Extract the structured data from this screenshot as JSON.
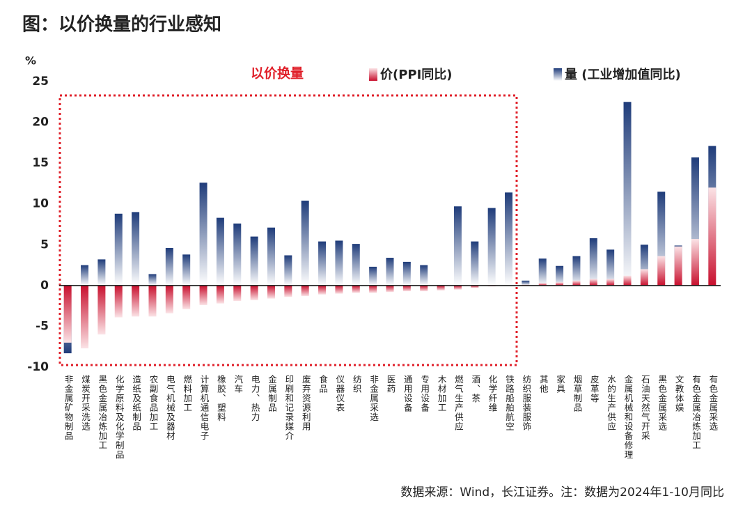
{
  "chart_data": {
    "type": "bar",
    "title": "图：以价换量的行业感知",
    "y_label": "%",
    "annotation": "以价换量",
    "source": "数据来源：Wind，长江证券。注：数据为2024年1-10月同比",
    "categories": [
      "非金属矿物制品",
      "煤炭开采洗选",
      "黑色金属冶炼加工",
      "化学原料及化学制品",
      "造纸及纸制品",
      "农副食品加工",
      "电气机械及器材",
      "燃料加工",
      "计算机通信电子",
      "橡胶、塑料",
      "汽车",
      "电力、热力",
      "金属制品",
      "印刷和记录媒介",
      "废弃资源利用",
      "食品",
      "仪器仪表",
      "纺织",
      "非金属采选",
      "医药",
      "通用设备",
      "专用设备",
      "木材加工",
      "燃气生产供应",
      "酒、茶",
      "化学纤维",
      "铁路船舶航空",
      "纺织服装服饰",
      "其他",
      "家具",
      "烟草制品",
      "皮革等",
      "水的生产供应",
      "金属机械和设备修理",
      "石油天然气开采",
      "黑色金属采选",
      "文教体娱",
      "有色金属冶炼加工",
      "有色金属采选"
    ],
    "series": [
      {
        "name": "量 (工业增加值同比)",
        "color": "#1f3c7a",
        "values": [
          -8.3,
          2.5,
          3.2,
          8.8,
          9.0,
          1.4,
          4.6,
          3.8,
          12.6,
          8.3,
          7.6,
          6.0,
          7.1,
          3.7,
          10.4,
          5.4,
          5.5,
          5.1,
          2.3,
          3.4,
          2.9,
          2.5,
          0.0,
          9.7,
          5.4,
          9.5,
          11.4,
          0.6,
          3.3,
          2.4,
          3.6,
          5.8,
          4.4,
          22.5,
          5.0,
          11.5,
          4.9,
          15.7,
          17.1
        ]
      },
      {
        "name": "价(PPI同比)",
        "color": "#c8102e",
        "values": [
          -7.0,
          -7.7,
          -6.0,
          -3.9,
          -3.8,
          -3.8,
          -3.4,
          -2.9,
          -2.4,
          -2.2,
          -1.9,
          -1.8,
          -1.6,
          -1.4,
          -1.3,
          -1.1,
          -1.0,
          -0.9,
          -0.9,
          -0.8,
          -0.7,
          -0.7,
          -0.6,
          -0.5,
          -0.3,
          -0.1,
          0.0,
          0.1,
          0.3,
          0.4,
          0.6,
          0.8,
          0.8,
          1.2,
          2.0,
          3.6,
          4.8,
          5.7,
          12.0
        ]
      }
    ],
    "ylim": [
      -10,
      25
    ],
    "yticks": [
      -10,
      -5,
      0,
      5,
      10,
      15,
      20,
      25
    ]
  }
}
